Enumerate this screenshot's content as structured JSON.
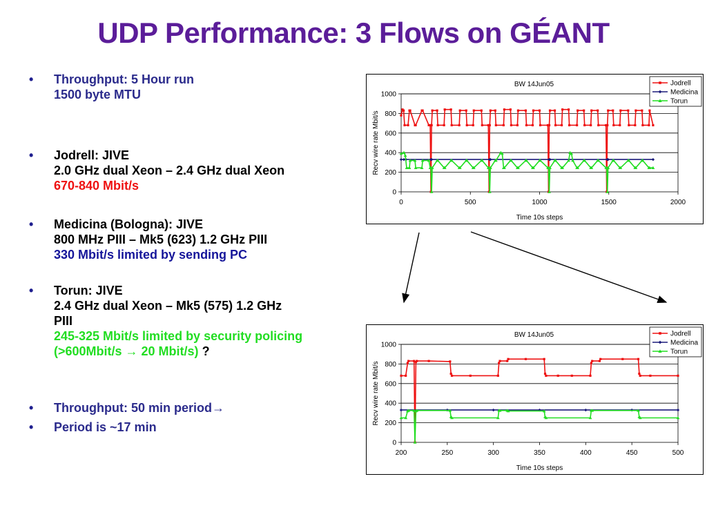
{
  "slide": {
    "title": "UDP Performance: 3 Flows on GÉANT",
    "bullets": [
      {
        "lines": [
          {
            "text": "Throughput: 5 Hour run",
            "class": "navy"
          },
          {
            "text": " 1500 byte MTU",
            "class": "navy",
            "indent": true
          }
        ]
      },
      {
        "lines": [
          {
            "text": "Jodrell: JIVE",
            "class": "black"
          },
          {
            "text": "2.0 GHz  dual Xeon – 2.4 GHz dual Xeon",
            "class": "black"
          },
          {
            "text": "670-840 Mbit/s",
            "class": "red"
          }
        ]
      },
      {
        "lines": [
          {
            "text": "Medicina (Bologna): JIVE",
            "class": "black"
          },
          {
            "text": "800 MHz PIII – Mk5 (623) 1.2 GHz PIII",
            "class": "black"
          },
          {
            "text": "330 Mbit/s limited by sending PC",
            "class": "blue"
          }
        ]
      },
      {
        "lines": [
          {
            "text": "Torun: JIVE",
            "class": "black"
          },
          {
            "text": "2.4 GHz dual Xeon – Mk5 (575) 1.2 GHz",
            "class": "black"
          },
          {
            "text": "PIII",
            "class": "black"
          },
          {
            "text": "245-325 Mbit/s limited by security policing",
            "class": "green"
          },
          {
            "text": "(>600Mbit/s → 20 Mbit/s)",
            "class": "green",
            "suffix": " ?"
          }
        ]
      },
      {
        "lines": [
          {
            "text": "Throughput: 50 min period→",
            "class": "navy"
          }
        ]
      },
      {
        "lines": [
          {
            "text": "Period is ~17 min",
            "class": "navy"
          }
        ]
      }
    ]
  },
  "chart_data": [
    {
      "type": "line",
      "title": "BW 14Jun05",
      "xlabel": "Time 10s steps",
      "ylabel": "Recv wire rate Mbit/s",
      "xlim": [
        0,
        2000
      ],
      "ylim": [
        0,
        1000
      ],
      "xticks": [
        0,
        500,
        1000,
        1500,
        2000
      ],
      "yticks": [
        0,
        200,
        400,
        600,
        800,
        1000
      ],
      "grid": "horizontal",
      "legend": "top-right",
      "series": [
        {
          "name": "Jodrell",
          "color": "#ee1111",
          "marker": "square",
          "x": [
            0,
            10,
            18,
            25,
            50,
            60,
            65,
            100,
            105,
            150,
            155,
            200,
            210,
            215,
            220,
            225,
            260,
            265,
            310,
            315,
            360,
            365,
            420,
            425,
            470,
            475,
            520,
            525,
            580,
            585,
            630,
            635,
            640,
            645,
            680,
            685,
            740,
            745,
            790,
            795,
            840,
            845,
            900,
            905,
            950,
            955,
            1000,
            1005,
            1060,
            1065,
            1070,
            1075,
            1110,
            1115,
            1160,
            1165,
            1210,
            1215,
            1270,
            1275,
            1320,
            1325,
            1370,
            1375,
            1420,
            1425,
            1480,
            1485,
            1490,
            1495,
            1530,
            1535,
            1580,
            1585,
            1640,
            1645,
            1690,
            1695,
            1740,
            1745,
            1790,
            1795,
            1820
          ],
          "y": [
            780,
            840,
            830,
            680,
            680,
            830,
            830,
            680,
            680,
            830,
            830,
            680,
            680,
            0,
            680,
            830,
            830,
            680,
            680,
            840,
            840,
            680,
            680,
            830,
            830,
            680,
            680,
            830,
            830,
            680,
            680,
            0,
            680,
            830,
            830,
            680,
            680,
            840,
            840,
            680,
            680,
            830,
            830,
            680,
            680,
            830,
            830,
            680,
            680,
            0,
            680,
            830,
            830,
            680,
            680,
            840,
            840,
            680,
            680,
            830,
            830,
            680,
            680,
            830,
            830,
            680,
            680,
            0,
            680,
            830,
            830,
            680,
            680,
            830,
            830,
            680,
            680,
            830,
            830,
            680,
            680,
            830,
            680
          ]
        },
        {
          "name": "Medicina",
          "color": "#1a1a7a",
          "marker": "diamond",
          "x": [
            0,
            20,
            35,
            215,
            220,
            640,
            645,
            1070,
            1075,
            1490,
            1495,
            1820
          ],
          "y": [
            330,
            330,
            330,
            330,
            330,
            330,
            330,
            330,
            330,
            330,
            330,
            330
          ]
        },
        {
          "name": "Torun",
          "color": "#22dd22",
          "marker": "triangle",
          "x": [
            0,
            20,
            30,
            40,
            60,
            65,
            100,
            105,
            150,
            155,
            200,
            210,
            215,
            220,
            225,
            260,
            265,
            310,
            315,
            360,
            365,
            420,
            425,
            470,
            475,
            520,
            525,
            580,
            585,
            630,
            635,
            640,
            645,
            680,
            685,
            720,
            730,
            740,
            745,
            790,
            795,
            840,
            845,
            900,
            905,
            950,
            955,
            1000,
            1005,
            1060,
            1065,
            1070,
            1075,
            1110,
            1115,
            1160,
            1165,
            1210,
            1220,
            1230,
            1240,
            1270,
            1275,
            1320,
            1325,
            1370,
            1375,
            1420,
            1425,
            1480,
            1485,
            1490,
            1495,
            1530,
            1535,
            1580,
            1585,
            1640,
            1645,
            1690,
            1695,
            1740,
            1745,
            1790,
            1795,
            1820
          ],
          "y": [
            390,
            400,
            370,
            245,
            245,
            320,
            320,
            245,
            245,
            320,
            320,
            245,
            245,
            0,
            245,
            320,
            320,
            245,
            245,
            320,
            320,
            245,
            245,
            320,
            320,
            245,
            245,
            320,
            320,
            245,
            245,
            0,
            245,
            320,
            320,
            400,
            390,
            245,
            245,
            320,
            320,
            245,
            245,
            320,
            320,
            245,
            245,
            320,
            320,
            245,
            245,
            0,
            245,
            320,
            320,
            245,
            245,
            320,
            400,
            390,
            320,
            245,
            245,
            320,
            320,
            245,
            245,
            320,
            320,
            245,
            245,
            0,
            245,
            320,
            320,
            245,
            245,
            320,
            320,
            245,
            245,
            320,
            320,
            245,
            245,
            245
          ]
        }
      ]
    },
    {
      "type": "line",
      "title": "BW 14Jun05",
      "xlabel": "Time 10s steps",
      "ylabel": "Recv wire rate Mbit/s",
      "xlim": [
        200,
        500
      ],
      "ylim": [
        0,
        1000
      ],
      "xticks": [
        200,
        250,
        300,
        350,
        400,
        450,
        500
      ],
      "yticks": [
        0,
        200,
        400,
        600,
        800,
        1000
      ],
      "grid": "horizontal",
      "legend": "top-right",
      "series": [
        {
          "name": "Jodrell",
          "color": "#ee1111",
          "marker": "square",
          "x": [
            200,
            205,
            207,
            208,
            214,
            215,
            216,
            217,
            230,
            253,
            254,
            255,
            275,
            305,
            306,
            307,
            315,
            316,
            335,
            355,
            356,
            357,
            370,
            385,
            405,
            406,
            407,
            415,
            416,
            440,
            457,
            458,
            459,
            470,
            500
          ],
          "y": [
            680,
            680,
            810,
            830,
            830,
            0,
            820,
            830,
            830,
            825,
            700,
            680,
            680,
            680,
            810,
            830,
            830,
            850,
            850,
            850,
            700,
            680,
            680,
            680,
            680,
            810,
            830,
            830,
            850,
            850,
            850,
            700,
            680,
            680,
            680
          ]
        },
        {
          "name": "Medicina",
          "color": "#1a1a7a",
          "marker": "diamond",
          "x": [
            200,
            250,
            300,
            350,
            400,
            450,
            500
          ],
          "y": [
            330,
            330,
            330,
            330,
            330,
            330,
            330
          ]
        },
        {
          "name": "Torun",
          "color": "#22dd22",
          "marker": "triangle",
          "x": [
            200,
            205,
            207,
            208,
            214,
            215,
            216,
            217,
            253,
            254,
            255,
            305,
            306,
            307,
            315,
            316,
            355,
            356,
            357,
            405,
            406,
            407,
            457,
            458,
            459,
            500
          ],
          "y": [
            250,
            250,
            320,
            325,
            325,
            0,
            320,
            325,
            325,
            260,
            250,
            250,
            325,
            325,
            325,
            320,
            320,
            260,
            250,
            250,
            325,
            325,
            325,
            260,
            250,
            250
          ]
        }
      ]
    }
  ]
}
